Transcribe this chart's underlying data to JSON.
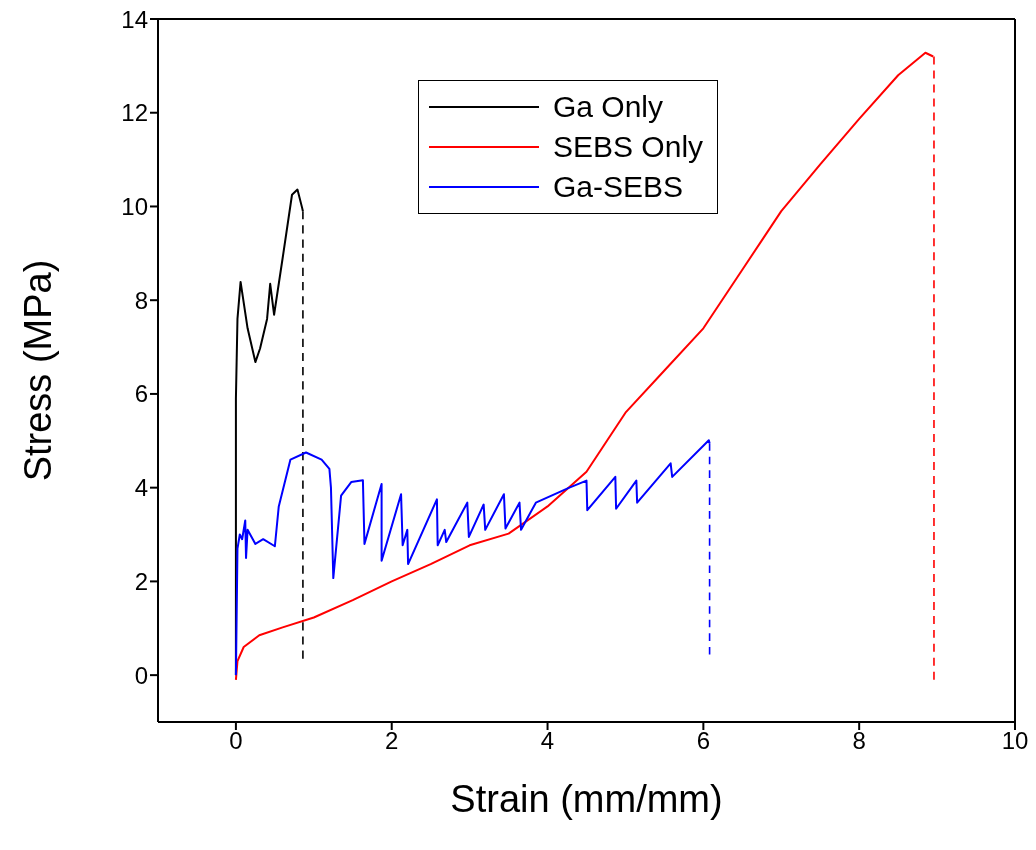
{
  "chart_data": {
    "type": "line",
    "xlabel": "Strain (mm/mm)",
    "ylabel": "Stress (MPa)",
    "xlim": [
      -1,
      10
    ],
    "ylim": [
      -1,
      14
    ],
    "xticks": [
      0,
      2,
      4,
      6,
      8,
      10
    ],
    "yticks": [
      0,
      2,
      4,
      6,
      8,
      10,
      12,
      14
    ],
    "legend": "top",
    "marker": "none",
    "series": [
      {
        "name": "Ga Only",
        "color": "#000000",
        "line_style": "solid",
        "x": [
          0,
          0,
          0.02,
          0.06,
          0.15,
          0.25,
          0.31,
          0.4,
          0.44,
          0.49,
          0.6,
          0.72,
          0.79,
          0.85,
          0.86
        ],
        "values": [
          0,
          5.9,
          7.6,
          8.39,
          7.4,
          6.68,
          6.97,
          7.6,
          8.35,
          7.69,
          8.9,
          10.25,
          10.36,
          9.97,
          9.9
        ]
      },
      {
        "color": "#000000",
        "line_style": "dashed",
        "x": [
          0.86,
          0.86
        ],
        "values": [
          9.9,
          0.35
        ]
      },
      {
        "name": "SEBS Only",
        "color": "#ff0000",
        "line_style": "solid",
        "x": [
          0,
          0.02,
          0.1,
          0.3,
          0.6,
          1,
          1.5,
          2,
          2.5,
          3,
          3.5,
          4,
          4.5,
          5,
          5.5,
          6,
          6.5,
          7,
          7.5,
          8,
          8.5,
          8.85,
          8.95
        ],
        "values": [
          -0.1,
          0.3,
          0.6,
          0.85,
          1.02,
          1.23,
          1.6,
          2.0,
          2.37,
          2.77,
          3.02,
          3.6,
          4.34,
          5.6,
          6.5,
          7.4,
          8.65,
          9.9,
          10.9,
          11.87,
          12.8,
          13.28,
          13.2
        ]
      },
      {
        "color": "#ff0000",
        "line_style": "dashed",
        "x": [
          8.96,
          8.96
        ],
        "values": [
          13.2,
          -0.1
        ]
      },
      {
        "name": "Ga-SEBS",
        "color": "#0000ff",
        "line_style": "solid",
        "x": [
          0,
          0.02,
          0.05,
          0.08,
          0.12,
          0.13,
          0.15,
          0.25,
          0.35,
          0.5,
          0.55,
          0.7,
          0.9,
          1.1,
          1.2,
          1.22,
          1.25,
          1.35,
          1.48,
          1.63,
          1.65,
          1.87,
          1.87,
          2.12,
          2.14,
          2.2,
          2.21,
          2.58,
          2.59,
          2.68,
          2.7,
          2.97,
          2.99,
          3.18,
          3.2,
          3.44,
          3.46,
          3.64,
          3.66,
          3.85,
          4.28,
          4.5,
          4.51,
          4.87,
          4.88,
          5.14,
          5.15,
          5.58,
          5.6,
          6.07,
          6.08
        ],
        "values": [
          0,
          2.7,
          3.0,
          2.9,
          3.3,
          2.5,
          3.1,
          2.8,
          2.9,
          2.75,
          3.6,
          4.6,
          4.75,
          4.6,
          4.4,
          4.0,
          2.07,
          3.83,
          4.12,
          4.16,
          2.8,
          4.08,
          2.44,
          3.86,
          2.77,
          3.1,
          2.37,
          3.75,
          2.77,
          3.1,
          2.84,
          3.68,
          2.95,
          3.64,
          3.1,
          3.86,
          3.13,
          3.68,
          3.1,
          3.68,
          4.0,
          4.15,
          3.52,
          4.23,
          3.55,
          4.15,
          3.68,
          4.52,
          4.23,
          5.01,
          4.95
        ]
      },
      {
        "color": "#0000ff",
        "line_style": "dashed",
        "x": [
          6.08,
          6.08
        ],
        "values": [
          4.95,
          0.44
        ]
      }
    ]
  }
}
